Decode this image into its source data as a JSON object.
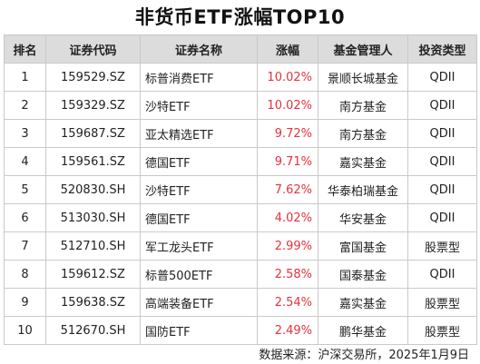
{
  "title": "非货币ETF涨幅TOP10",
  "headers": [
    "排名",
    "证券代码",
    "证券名称",
    "涨幅",
    "基金管理人",
    "投资类型"
  ],
  "rows": [
    {
      "rank": "1",
      "code": "159529.SZ",
      "name": "标普消费ETF",
      "change": "10.02%",
      "manager": "景顺长城基金",
      "type": "QDII"
    },
    {
      "rank": "2",
      "code": "159329.SZ",
      "name": "沙特ETF",
      "change": "10.02%",
      "manager": "南方基金",
      "type": "QDII"
    },
    {
      "rank": "3",
      "code": "159687.SZ",
      "name": "亚太精选ETF",
      "change": "9.72%",
      "manager": "南方基金",
      "type": "QDII"
    },
    {
      "rank": "4",
      "code": "159561.SZ",
      "name": "德国ETF",
      "change": "9.71%",
      "manager": "嘉实基金",
      "type": "QDII"
    },
    {
      "rank": "5",
      "code": "520830.SH",
      "name": "沙特ETF",
      "change": "7.62%",
      "manager": "华泰柏瑞基金",
      "type": "QDII"
    },
    {
      "rank": "6",
      "code": "513030.SH",
      "name": "德国ETF",
      "change": "4.02%",
      "manager": "华安基金",
      "type": "QDII"
    },
    {
      "rank": "7",
      "code": "512710.SH",
      "name": "军工龙头ETF",
      "change": "2.99%",
      "manager": "富国基金",
      "type": "股票型"
    },
    {
      "rank": "8",
      "code": "159612.SZ",
      "name": "标普500ETF",
      "change": "2.58%",
      "manager": "国泰基金",
      "type": "QDII"
    },
    {
      "rank": "9",
      "code": "159638.SZ",
      "name": "高端装备ETF",
      "change": "2.54%",
      "manager": "嘉实基金",
      "type": "股票型"
    },
    {
      "rank": "10",
      "code": "512670.SH",
      "name": "国防ETF",
      "change": "2.49%",
      "manager": "鹏华基金",
      "type": "股票型"
    }
  ],
  "source": "数据来源：沪深交易所，2025年1月9日",
  "colors": {
    "header_bg": "#dcdcdc",
    "change_text": "#e8313c",
    "border": "#c9c9c9"
  }
}
